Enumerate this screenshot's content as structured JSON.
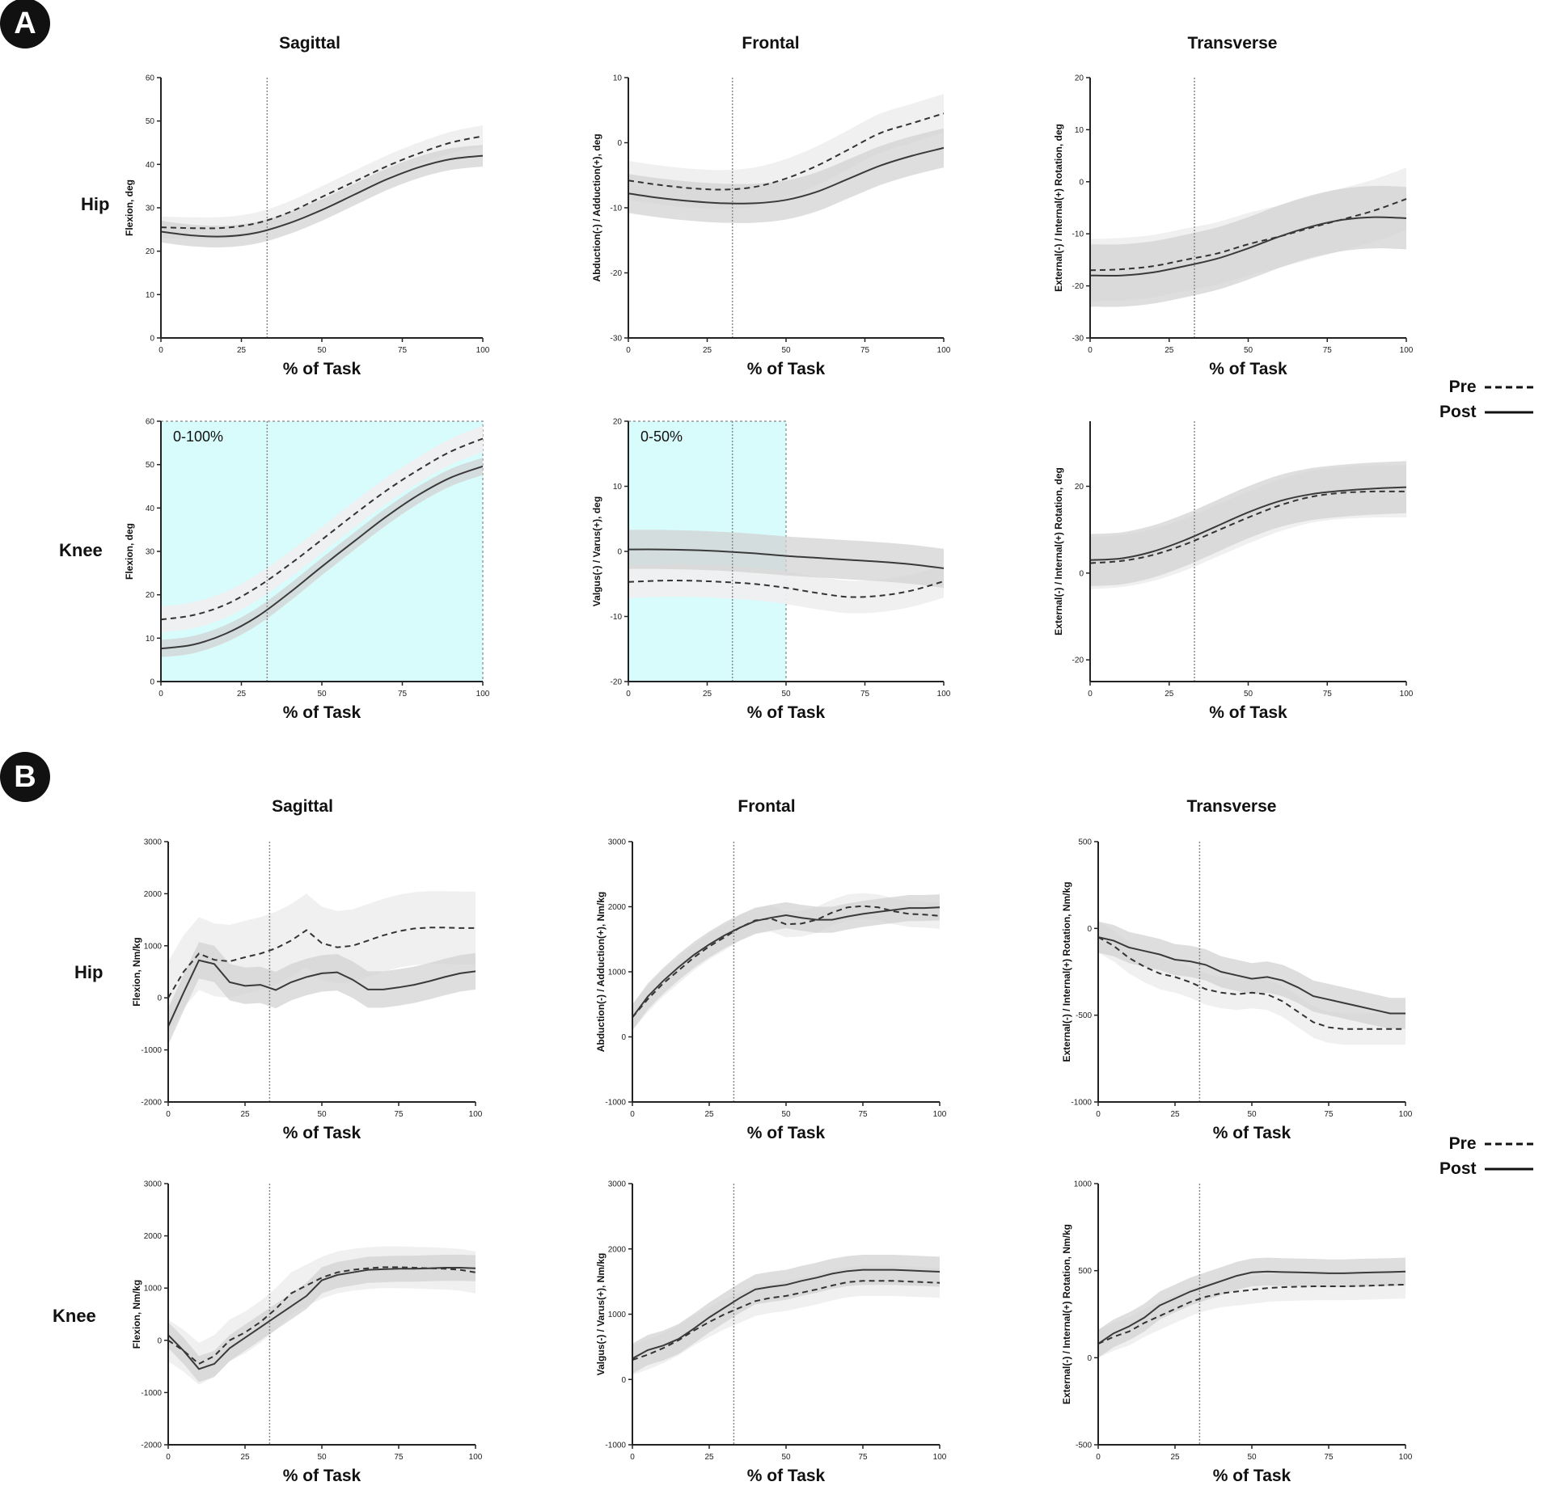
{
  "panels": [
    {
      "badge": "A",
      "col_titles": [
        "Sagittal",
        "Frontal",
        "Transverse"
      ],
      "row_labels": [
        "Hip",
        "Knee"
      ]
    },
    {
      "badge": "B",
      "col_titles": [
        "Sagittal",
        "Frontal",
        "Transverse"
      ],
      "row_labels": [
        "Hip",
        "Knee"
      ]
    }
  ],
  "legend": {
    "pre_label": "Pre",
    "post_label": "Post"
  },
  "colors": {
    "pre_band": "#efeff0",
    "post_band": "#d3d3d3",
    "post_line": "#3a3a3a",
    "pre_line": "#333333",
    "highlight": "#d8fcfc",
    "highlight_border": "#9a9a9a",
    "vline": "#8a8a8a"
  },
  "chart_data": [
    {
      "id": "A-hip-sagittal",
      "type": "line",
      "xlabel": "% of Task",
      "ylabel": "Flexion, deg",
      "xlim": [
        0,
        100
      ],
      "ylim": [
        0,
        60
      ],
      "xticks": [
        0,
        25,
        50,
        75,
        100
      ],
      "yticks": [
        0,
        10,
        20,
        30,
        40,
        50,
        60
      ],
      "vline": 33,
      "x": [
        0,
        10,
        20,
        30,
        40,
        50,
        60,
        70,
        80,
        90,
        100
      ],
      "series": [
        {
          "name": "Pre",
          "values": [
            25.5,
            25.3,
            25.4,
            26.5,
            29,
            32.5,
            36,
            39.5,
            42.5,
            45,
            46.5
          ],
          "band": 2.5
        },
        {
          "name": "Post",
          "values": [
            24.5,
            23.6,
            23.4,
            24.3,
            26.5,
            29.5,
            33,
            36.5,
            39.3,
            41.2,
            42
          ],
          "band": 2.5
        }
      ]
    },
    {
      "id": "A-hip-frontal",
      "type": "line",
      "xlabel": "% of Task",
      "ylabel": "Abduction(-) / Adduction(+), deg",
      "xlim": [
        0,
        100
      ],
      "ylim": [
        -30,
        10
      ],
      "xticks": [
        0,
        25,
        50,
        75,
        100
      ],
      "yticks": [
        -30,
        -20,
        -10,
        0,
        10
      ],
      "vline": 33,
      "x": [
        0,
        10,
        20,
        30,
        40,
        50,
        60,
        70,
        80,
        90,
        100
      ],
      "series": [
        {
          "name": "Pre",
          "values": [
            -5.8,
            -6.5,
            -7,
            -7.2,
            -6.8,
            -5.5,
            -3.5,
            -1,
            1.5,
            3,
            4.5
          ],
          "band": 3
        },
        {
          "name": "Post",
          "values": [
            -7.8,
            -8.5,
            -9,
            -9.3,
            -9.3,
            -8.8,
            -7.5,
            -5.5,
            -3.5,
            -2,
            -0.8
          ],
          "band": 3
        }
      ]
    },
    {
      "id": "A-hip-transverse",
      "type": "line",
      "xlabel": "% of Task",
      "ylabel": "External(-) / Internal(+) Rotation, deg",
      "xlim": [
        0,
        100
      ],
      "ylim": [
        -30,
        20
      ],
      "xticks": [
        0,
        25,
        50,
        75,
        100
      ],
      "yticks": [
        -30,
        -20,
        -10,
        0,
        10,
        20
      ],
      "vline": 33,
      "x": [
        0,
        10,
        20,
        30,
        40,
        50,
        60,
        70,
        80,
        90,
        100
      ],
      "series": [
        {
          "name": "Pre",
          "values": [
            -17,
            -16.8,
            -16.2,
            -15,
            -13.8,
            -12,
            -10.5,
            -8.8,
            -7.2,
            -5.5,
            -3.3
          ],
          "band": 6
        },
        {
          "name": "Post",
          "values": [
            -18,
            -18,
            -17.4,
            -16.2,
            -14.8,
            -12.8,
            -10.5,
            -8.6,
            -7.3,
            -6.8,
            -7
          ],
          "band": 6
        }
      ]
    },
    {
      "id": "A-knee-sagittal",
      "type": "line",
      "xlabel": "% of Task",
      "ylabel": "Flexion, deg",
      "xlim": [
        0,
        100
      ],
      "ylim": [
        0,
        60
      ],
      "xticks": [
        0,
        25,
        50,
        75,
        100
      ],
      "yticks": [
        0,
        10,
        20,
        30,
        40,
        50,
        60
      ],
      "vline": 33,
      "highlight": [
        0,
        100
      ],
      "highlight_label": "0-100%",
      "x": [
        0,
        10,
        20,
        30,
        40,
        50,
        60,
        70,
        80,
        90,
        100
      ],
      "series": [
        {
          "name": "Pre",
          "values": [
            14.3,
            15.3,
            17.7,
            21.8,
            27,
            32.7,
            38.5,
            44,
            48.8,
            53,
            56
          ],
          "band": 3
        },
        {
          "name": "Post",
          "values": [
            7.6,
            8.5,
            11,
            15,
            20.5,
            26.5,
            32.3,
            38,
            43,
            47,
            49.6
          ],
          "band": 2
        }
      ]
    },
    {
      "id": "A-knee-frontal",
      "type": "line",
      "xlabel": "% of Task",
      "ylabel": "Valgus(-) / Varus(+), deg",
      "xlim": [
        0,
        100
      ],
      "ylim": [
        -20,
        20
      ],
      "xticks": [
        0,
        25,
        50,
        75,
        100
      ],
      "yticks": [
        -20,
        -10,
        0,
        10,
        20
      ],
      "vline": 33,
      "highlight": [
        0,
        50
      ],
      "highlight_label": "0-50%",
      "x": [
        0,
        10,
        20,
        30,
        40,
        50,
        60,
        70,
        80,
        90,
        100
      ],
      "series": [
        {
          "name": "Pre",
          "values": [
            -4.7,
            -4.5,
            -4.5,
            -4.7,
            -5,
            -5.6,
            -6.4,
            -7,
            -6.8,
            -6,
            -4.6
          ],
          "band": 2.5
        },
        {
          "name": "Post",
          "values": [
            0.3,
            0.3,
            0.2,
            0,
            -0.3,
            -0.7,
            -1,
            -1.3,
            -1.6,
            -2,
            -2.6
          ],
          "band": 3
        }
      ]
    },
    {
      "id": "A-knee-transverse",
      "type": "line",
      "xlabel": "% of Task",
      "ylabel": "External(-) / Internal(+) Rotation, deg",
      "xlim": [
        0,
        100
      ],
      "ylim": [
        -25,
        35
      ],
      "xticks": [
        0,
        25,
        50,
        75,
        100
      ],
      "yticks": [
        -20,
        0,
        20
      ],
      "vline": 33,
      "x": [
        0,
        10,
        20,
        30,
        40,
        50,
        60,
        70,
        80,
        90,
        100
      ],
      "series": [
        {
          "name": "Pre",
          "values": [
            2.3,
            2.8,
            4.2,
            6.6,
            9.7,
            12.8,
            15.6,
            17.6,
            18.5,
            18.8,
            18.8
          ],
          "band": 6
        },
        {
          "name": "Post",
          "values": [
            3,
            3.4,
            5,
            7.6,
            10.8,
            14,
            16.6,
            18.2,
            19,
            19.5,
            19.8
          ],
          "band": 6
        }
      ]
    },
    {
      "id": "B-hip-sagittal",
      "type": "line",
      "xlabel": "% of Task",
      "ylabel": "Flexion, Nm/kg",
      "xlim": [
        0,
        100
      ],
      "ylim": [
        -2000,
        3000
      ],
      "xticks": [
        0,
        25,
        50,
        75,
        100
      ],
      "yticks": [
        -2000,
        -1000,
        0,
        1000,
        2000,
        3000
      ],
      "vline": 33,
      "x": [
        0,
        5,
        10,
        15,
        20,
        25,
        30,
        35,
        40,
        45,
        50,
        55,
        60,
        65,
        70,
        75,
        80,
        85,
        90,
        95,
        100
      ],
      "series": [
        {
          "name": "Pre",
          "values": [
            0,
            500,
            850,
            730,
            700,
            780,
            850,
            950,
            1100,
            1300,
            1050,
            970,
            1000,
            1100,
            1200,
            1280,
            1330,
            1350,
            1350,
            1340,
            1340
          ],
          "band": 700
        },
        {
          "name": "Post",
          "values": [
            -550,
            100,
            720,
            650,
            300,
            230,
            250,
            150,
            300,
            400,
            470,
            490,
            350,
            160,
            160,
            200,
            250,
            320,
            400,
            470,
            510
          ],
          "band": 350
        }
      ]
    },
    {
      "id": "B-hip-frontal",
      "type": "line",
      "xlabel": "% of Task",
      "ylabel": "Abduction(-) / Adduction(+), Nm/kg",
      "xlim": [
        0,
        100
      ],
      "ylim": [
        -1000,
        3000
      ],
      "xticks": [
        0,
        25,
        50,
        75,
        100
      ],
      "yticks": [
        -1000,
        0,
        1000,
        2000,
        3000
      ],
      "vline": 33,
      "x": [
        0,
        5,
        10,
        15,
        20,
        25,
        30,
        35,
        40,
        45,
        50,
        55,
        60,
        65,
        70,
        75,
        80,
        85,
        90,
        95,
        100
      ],
      "series": [
        {
          "name": "Pre",
          "values": [
            300,
            580,
            820,
            1020,
            1220,
            1390,
            1530,
            1680,
            1790,
            1820,
            1730,
            1740,
            1800,
            1910,
            1990,
            2010,
            1990,
            1930,
            1890,
            1880,
            1860
          ],
          "band": 200
        },
        {
          "name": "Post",
          "values": [
            300,
            620,
            860,
            1070,
            1260,
            1420,
            1560,
            1680,
            1780,
            1830,
            1870,
            1830,
            1800,
            1800,
            1850,
            1890,
            1920,
            1950,
            1980,
            1980,
            1990
          ],
          "band": 200
        }
      ]
    },
    {
      "id": "B-hip-transverse",
      "type": "line",
      "xlabel": "% of Task",
      "ylabel": "External(-) / Internal(+) Rotation, Nm/kg",
      "xlim": [
        0,
        100
      ],
      "ylim": [
        -1000,
        500
      ],
      "xticks": [
        0,
        25,
        50,
        75,
        100
      ],
      "yticks": [
        -1000,
        -500,
        0,
        500
      ],
      "vline": 33,
      "x": [
        0,
        5,
        10,
        15,
        20,
        25,
        30,
        35,
        40,
        45,
        50,
        55,
        60,
        65,
        70,
        75,
        80,
        85,
        90,
        95,
        100
      ],
      "series": [
        {
          "name": "Pre",
          "values": [
            -50,
            -100,
            -170,
            -220,
            -260,
            -280,
            -310,
            -350,
            -370,
            -380,
            -370,
            -380,
            -420,
            -480,
            -540,
            -570,
            -580,
            -580,
            -580,
            -580,
            -580
          ],
          "band": 90
        },
        {
          "name": "Post",
          "values": [
            -50,
            -70,
            -110,
            -130,
            -150,
            -180,
            -190,
            -210,
            -250,
            -270,
            -290,
            -280,
            -300,
            -340,
            -390,
            -410,
            -430,
            -450,
            -470,
            -490,
            -490
          ],
          "band": 90
        }
      ]
    },
    {
      "id": "B-knee-sagittal",
      "type": "line",
      "xlabel": "% of Task",
      "ylabel": "Flexion, Nm/kg",
      "xlim": [
        0,
        100
      ],
      "ylim": [
        -2000,
        3000
      ],
      "xticks": [
        0,
        25,
        50,
        75,
        100
      ],
      "yticks": [
        -2000,
        -1000,
        0,
        1000,
        2000,
        3000
      ],
      "vline": 33,
      "x": [
        0,
        5,
        10,
        15,
        20,
        25,
        30,
        35,
        40,
        45,
        50,
        55,
        60,
        65,
        70,
        75,
        80,
        85,
        90,
        95,
        100
      ],
      "series": [
        {
          "name": "Pre",
          "values": [
            0,
            -200,
            -450,
            -300,
            0,
            150,
            350,
            600,
            900,
            1050,
            1200,
            1300,
            1350,
            1380,
            1400,
            1400,
            1390,
            1380,
            1370,
            1350,
            1300
          ],
          "band": 400
        },
        {
          "name": "Post",
          "values": [
            100,
            -200,
            -550,
            -450,
            -150,
            50,
            250,
            450,
            650,
            850,
            1150,
            1250,
            1300,
            1350,
            1360,
            1370,
            1370,
            1380,
            1390,
            1390,
            1380
          ],
          "band": 250
        }
      ]
    },
    {
      "id": "B-knee-frontal",
      "type": "line",
      "xlabel": "% of Task",
      "ylabel": "Valgus(-) / Varus(+), Nm/kg",
      "xlim": [
        0,
        100
      ],
      "ylim": [
        -1000,
        3000
      ],
      "xticks": [
        0,
        25,
        50,
        75,
        100
      ],
      "yticks": [
        -1000,
        0,
        1000,
        2000,
        3000
      ],
      "vline": 33,
      "x": [
        0,
        5,
        10,
        15,
        20,
        25,
        30,
        35,
        40,
        45,
        50,
        55,
        60,
        65,
        70,
        75,
        80,
        85,
        90,
        95,
        100
      ],
      "series": [
        {
          "name": "Pre",
          "values": [
            300,
            380,
            480,
            600,
            750,
            880,
            1000,
            1100,
            1200,
            1250,
            1280,
            1330,
            1380,
            1440,
            1490,
            1510,
            1510,
            1510,
            1500,
            1490,
            1480
          ],
          "band": 230
        },
        {
          "name": "Post",
          "values": [
            320,
            450,
            520,
            620,
            780,
            950,
            1100,
            1250,
            1380,
            1420,
            1450,
            1510,
            1560,
            1620,
            1660,
            1680,
            1680,
            1680,
            1670,
            1660,
            1650
          ],
          "band": 230
        }
      ]
    },
    {
      "id": "B-knee-transverse",
      "type": "line",
      "xlabel": "% of Task",
      "ylabel": "External(-) / Internal(+) Rotation, Nm/kg",
      "xlim": [
        0,
        100
      ],
      "ylim": [
        -500,
        1000
      ],
      "xticks": [
        0,
        25,
        50,
        75,
        100
      ],
      "yticks": [
        -500,
        0,
        500,
        1000
      ],
      "vline": 33,
      "x": [
        0,
        5,
        10,
        15,
        20,
        25,
        30,
        35,
        40,
        45,
        50,
        55,
        60,
        65,
        70,
        75,
        80,
        85,
        90,
        95,
        100
      ],
      "series": [
        {
          "name": "Pre",
          "values": [
            80,
            120,
            150,
            200,
            240,
            280,
            320,
            350,
            370,
            380,
            390,
            400,
            405,
            408,
            410,
            410,
            410,
            412,
            415,
            418,
            420
          ],
          "band": 80
        },
        {
          "name": "Post",
          "values": [
            80,
            140,
            180,
            230,
            300,
            340,
            380,
            410,
            440,
            470,
            490,
            495,
            492,
            490,
            488,
            485,
            485,
            488,
            490,
            492,
            495
          ],
          "band": 80
        }
      ]
    }
  ]
}
